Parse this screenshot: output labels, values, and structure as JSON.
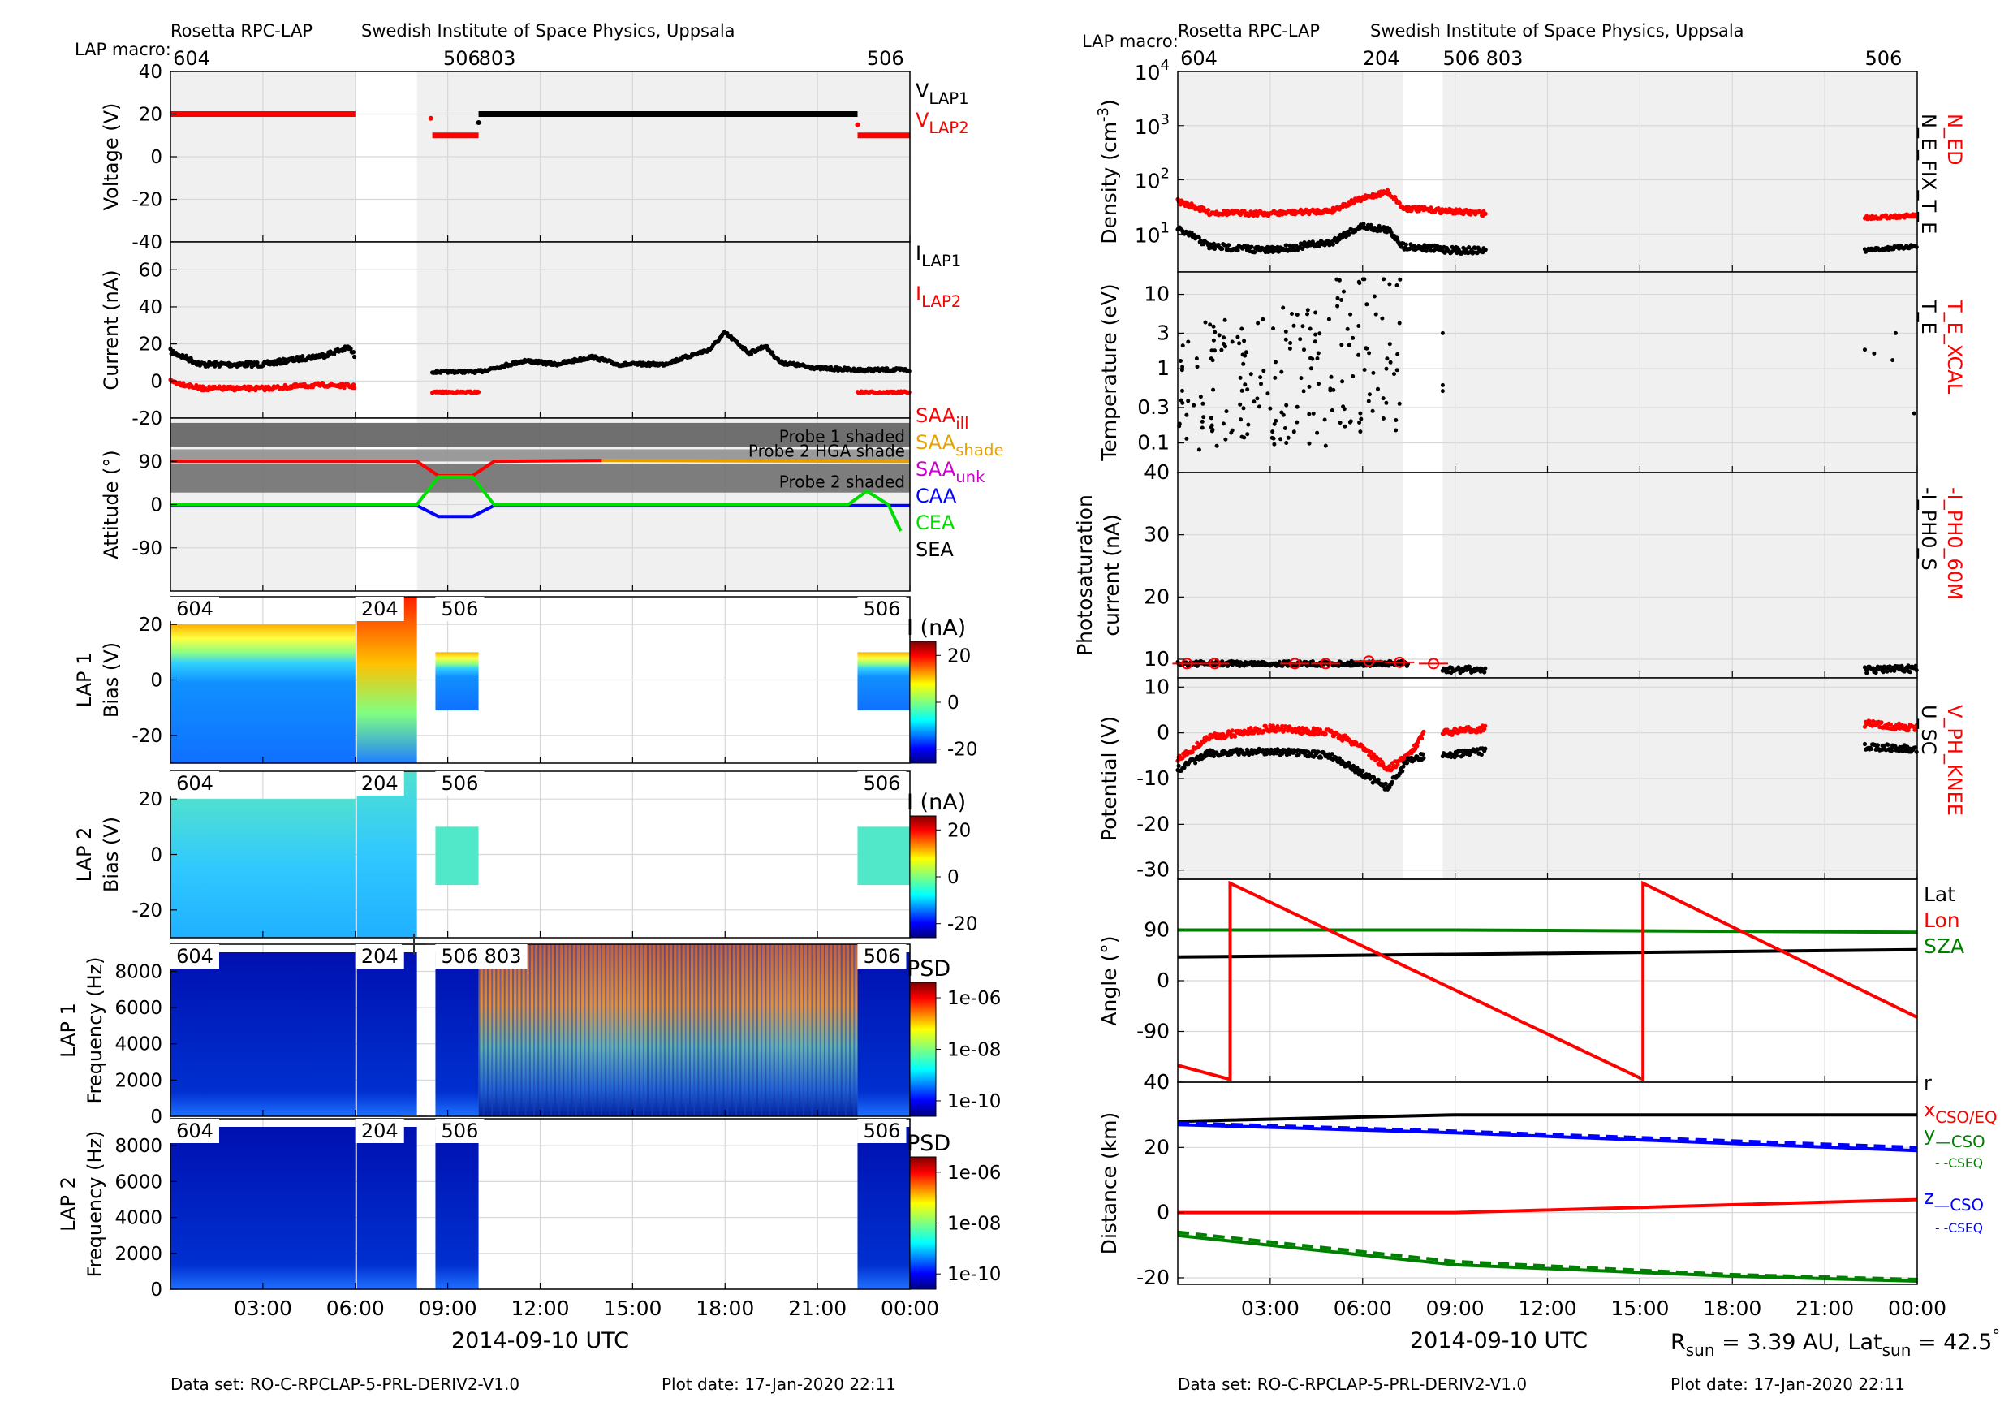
{
  "left": {
    "header": {
      "instrument": "Rosetta RPC-LAP",
      "institute": "Swedish Institute of Space Physics, Uppsala",
      "macro_label": "LAP macro:",
      "macros": [
        {
          "label": "604",
          "t": 0.0
        },
        {
          "label": "506",
          "t": 8.85
        },
        {
          "label": "803",
          "t": 10.0
        },
        {
          "label": "506",
          "t": 22.6
        }
      ]
    },
    "footer": {
      "dataset": "Data set: RO-C-RPCLAP-5-PRL-DERIV2-V1.0",
      "plotdate": "Plot date: 17-Jan-2020 22:11"
    },
    "xaxis": {
      "title": "2014-09-10 UTC",
      "ticks": [
        "03:00",
        "06:00",
        "09:00",
        "12:00",
        "15:00",
        "18:00",
        "21:00",
        "00:00"
      ],
      "tick_hours": [
        3,
        6,
        9,
        12,
        15,
        18,
        21,
        24
      ]
    },
    "voltage": {
      "ylabel": "Voltage (V)",
      "ylim": [
        -40,
        40
      ],
      "yticks": [
        "40",
        "20",
        "0",
        "-20",
        "-40"
      ],
      "ytick_vals": [
        40,
        20,
        0,
        -20,
        -40
      ],
      "legend": [
        {
          "name": "V",
          "sub": "LAP1",
          "color": "#000000"
        },
        {
          "name": "V",
          "sub": "LAP2",
          "color": "#ff0000"
        }
      ],
      "segments": [
        {
          "series": "LAP2",
          "t0": 0.0,
          "t1": 6.0,
          "v": 20
        },
        {
          "series": "LAP2",
          "t0": 8.5,
          "t1": 10.0,
          "v": 10
        },
        {
          "series": "LAP1",
          "t0": 10.0,
          "t1": 22.3,
          "v": 20
        },
        {
          "series": "LAP2",
          "t0": 22.3,
          "t1": 24.0,
          "v": 10
        }
      ]
    },
    "current": {
      "ylabel": "Current (nA)",
      "ylim": [
        -20,
        75
      ],
      "yticks": [
        "60",
        "40",
        "20",
        "0",
        "-20"
      ],
      "ytick_vals": [
        60,
        40,
        20,
        0,
        -20
      ],
      "legend": [
        {
          "name": "I",
          "sub": "LAP1",
          "color": "#000000"
        },
        {
          "name": "I",
          "sub": "LAP2",
          "color": "#ff0000"
        }
      ],
      "lap1": [
        [
          0,
          16
        ],
        [
          1,
          9
        ],
        [
          3,
          9
        ],
        [
          5,
          14
        ],
        [
          5.8,
          18
        ],
        [
          6,
          13
        ],
        [
          8.5,
          5
        ],
        [
          10,
          5
        ],
        [
          11.5,
          11
        ],
        [
          12.5,
          9
        ],
        [
          13.7,
          13
        ],
        [
          14.5,
          9
        ],
        [
          16,
          9
        ],
        [
          17.5,
          17
        ],
        [
          18,
          26
        ],
        [
          18.8,
          15
        ],
        [
          19.3,
          19
        ],
        [
          19.8,
          10
        ],
        [
          21,
          7
        ],
        [
          22.3,
          6
        ],
        [
          24,
          6
        ]
      ],
      "lap2": [
        [
          0,
          0
        ],
        [
          1,
          -4
        ],
        [
          3,
          -4
        ],
        [
          5,
          -2
        ],
        [
          6,
          -3
        ],
        [
          8.5,
          -6
        ],
        [
          10,
          -6
        ],
        [
          22.3,
          -6
        ],
        [
          24,
          -6
        ]
      ]
    },
    "attitude": {
      "ylabel": "Attitude (°)",
      "ylim": [
        -180,
        180
      ],
      "yticks": [
        "90",
        "0",
        "-90"
      ],
      "ytick_vals": [
        90,
        0,
        -90
      ],
      "bands": [
        {
          "label": "Probe 1 shaded",
          "y0": 120,
          "y1": 170
        },
        {
          "label": "Probe 2 HGA shade",
          "y0": 90,
          "y1": 115
        },
        {
          "label": "Probe 2 shaded",
          "y0": 25,
          "y1": 85
        }
      ],
      "legend": [
        {
          "name": "SAA",
          "sub": "ill",
          "color": "#ff0000"
        },
        {
          "name": "SAA",
          "sub": "shade",
          "color": "#e8a000"
        },
        {
          "name": "SAA",
          "sub": "unk",
          "color": "#cc00cc"
        },
        {
          "name": "CAA",
          "sub": "",
          "color": "#0000ff"
        },
        {
          "name": "CEA",
          "sub": "",
          "color": "#00dd00"
        },
        {
          "name": "SEA",
          "sub": "",
          "color": "#000000"
        }
      ],
      "saa_ill": [
        [
          0,
          90
        ],
        [
          8,
          90
        ],
        [
          8.7,
          60
        ],
        [
          9.8,
          60
        ],
        [
          10.5,
          90
        ],
        [
          14,
          92
        ]
      ],
      "saa_shade": [
        [
          14,
          92
        ],
        [
          24,
          90
        ]
      ],
      "caa": [
        [
          0,
          -2
        ],
        [
          8,
          -2
        ],
        [
          8.7,
          -25
        ],
        [
          9.8,
          -25
        ],
        [
          10.5,
          -2
        ],
        [
          24,
          -2
        ]
      ],
      "cea": [
        [
          0,
          0
        ],
        [
          8,
          0
        ],
        [
          8.7,
          58
        ],
        [
          9.8,
          58
        ],
        [
          10.5,
          0
        ],
        [
          22,
          0
        ],
        [
          22.6,
          28
        ],
        [
          23.3,
          0
        ],
        [
          23.7,
          -55
        ]
      ]
    },
    "lap1_bias": {
      "ylabel1": "LAP 1",
      "ylabel2": "Bias (V)",
      "ylim": [
        -30,
        30
      ],
      "yticks": [
        "20",
        "0",
        "-20"
      ],
      "ytick_vals": [
        20,
        0,
        -20
      ],
      "cbar_title": "I (nA)",
      "cbar_ticks": [
        "20",
        "0",
        "-20"
      ],
      "macros": [
        {
          "label": "604",
          "t": 0.0
        },
        {
          "label": "204",
          "t": 6.0
        },
        {
          "label": "506",
          "t": 8.6
        },
        {
          "label": "506",
          "t": 22.3
        }
      ]
    },
    "lap2_bias": {
      "ylabel1": "LAP 2",
      "ylabel2": "Bias (V)",
      "ylim": [
        -30,
        30
      ],
      "yticks": [
        "20",
        "0",
        "-20"
      ],
      "ytick_vals": [
        20,
        0,
        -20
      ],
      "cbar_title": "I (nA)",
      "cbar_ticks": [
        "20",
        "0",
        "-20"
      ],
      "macros": [
        {
          "label": "604",
          "t": 0.0
        },
        {
          "label": "204",
          "t": 6.0
        },
        {
          "label": "506",
          "t": 8.6
        },
        {
          "label": "506",
          "t": 22.3
        }
      ]
    },
    "lap1_freq": {
      "ylabel1": "LAP 1",
      "ylabel2": "Frequency (Hz)",
      "ylim": [
        0,
        9500
      ],
      "yticks": [
        "8000",
        "6000",
        "4000",
        "2000",
        "0"
      ],
      "ytick_vals": [
        8000,
        6000,
        4000,
        2000,
        0
      ],
      "cbar_title": "PSD",
      "cbar_ticks": [
        "1e-06",
        "1e-08",
        "1e-10"
      ],
      "macros": [
        {
          "label": "604",
          "t": 0.0
        },
        {
          "label": "204",
          "t": 6.0
        },
        {
          "label": "506",
          "t": 8.6
        },
        {
          "label": "803",
          "t": 10.0
        },
        {
          "label": "506",
          "t": 22.3
        }
      ]
    },
    "lap2_freq": {
      "ylabel1": "LAP 2",
      "ylabel2": "Frequency (Hz)",
      "ylim": [
        0,
        9500
      ],
      "yticks": [
        "8000",
        "6000",
        "4000",
        "2000",
        "0"
      ],
      "ytick_vals": [
        8000,
        6000,
        4000,
        2000,
        0
      ],
      "cbar_title": "PSD",
      "cbar_ticks": [
        "1e-06",
        "1e-08",
        "1e-10"
      ],
      "macros": [
        {
          "label": "604",
          "t": 0.0
        },
        {
          "label": "204",
          "t": 6.0
        },
        {
          "label": "506",
          "t": 8.6
        },
        {
          "label": "506",
          "t": 22.3
        }
      ]
    }
  },
  "right": {
    "header": {
      "instrument": "Rosetta RPC-LAP",
      "institute": "Swedish Institute of Space Physics, Uppsala",
      "macro_label": "LAP macro:",
      "macros": [
        {
          "label": "604",
          "t": 0.0
        },
        {
          "label": "204",
          "t": 6.0
        },
        {
          "label": "506",
          "t": 8.6
        },
        {
          "label": "803",
          "t": 10.0
        },
        {
          "label": "506",
          "t": 22.3
        }
      ]
    },
    "footer": {
      "dataset": "Data set: RO-C-RPCLAP-5-PRL-DERIV2-V1.0",
      "plotdate": "Plot date: 17-Jan-2020 22:11"
    },
    "xaxis": {
      "title": "2014-09-10 UTC",
      "ticks": [
        "03:00",
        "06:00",
        "09:00",
        "12:00",
        "15:00",
        "18:00",
        "21:00",
        "00:00"
      ],
      "tick_hours": [
        3,
        6,
        9,
        12,
        15,
        18,
        21,
        24
      ]
    },
    "rsun_text": "R",
    "rsun_sub": "sun",
    "rsun_value": " = 3.39 AU, Lat",
    "lat_sub": "sun",
    "lat_value": " = 42.5",
    "lat_deg": "°",
    "density": {
      "ylabel": "Density (cm",
      "ylabel_exp": "-3",
      "ylabel_end": ")",
      "ytick_exps": [
        "4",
        "3",
        "2",
        "1"
      ],
      "ytick_vals": [
        10000,
        1000,
        100,
        10
      ],
      "tick_base": "10",
      "vlabels": [
        {
          "text": "N_ED",
          "color": "#ff0000"
        },
        {
          "text": "N_E_FIX_T_E",
          "color": "#000000"
        }
      ],
      "ned": [
        [
          0,
          40
        ],
        [
          1,
          25
        ],
        [
          3,
          24
        ],
        [
          5,
          27
        ],
        [
          6,
          45
        ],
        [
          6.8,
          60
        ],
        [
          7.3,
          30
        ],
        [
          9,
          26
        ],
        [
          10,
          24
        ]
      ],
      "ned2": [
        [
          22.3,
          20
        ],
        [
          24,
          22
        ]
      ],
      "nfix": [
        [
          0,
          12
        ],
        [
          1,
          6
        ],
        [
          3,
          5
        ],
        [
          5,
          7
        ],
        [
          6,
          14
        ],
        [
          6.8,
          12
        ],
        [
          7.3,
          6
        ],
        [
          9,
          5
        ],
        [
          10,
          5
        ]
      ],
      "nfix2": [
        [
          22.3,
          5
        ],
        [
          24,
          6
        ]
      ]
    },
    "temperature": {
      "ylabel": "Temperature (eV)",
      "yticks": [
        "10",
        "3",
        "1",
        "0.3",
        "0.1"
      ],
      "ytick_vals": [
        10,
        3,
        1,
        0.3,
        0.1
      ],
      "vlabels": [
        {
          "text": "T_E_XCAL",
          "color": "#ff0000"
        },
        {
          "text": "T_E",
          "color": "#000000"
        }
      ]
    },
    "photo": {
      "ylabel1": "Photosaturation",
      "ylabel2": "current (nA)",
      "ylim": [
        7,
        40
      ],
      "yticks": [
        "40",
        "30",
        "20",
        "10"
      ],
      "ytick_vals": [
        40,
        30,
        20,
        10
      ],
      "vlabels": [
        {
          "text": "-I_PH0_60M",
          "color": "#ff0000"
        },
        {
          "text": "-I_PH0_S",
          "color": "#000000"
        }
      ],
      "red_pts": [
        [
          0.3,
          9.3
        ],
        [
          1.2,
          9.3
        ],
        [
          3.8,
          9.3
        ],
        [
          4.8,
          9.3
        ],
        [
          6.2,
          9.7
        ],
        [
          7.2,
          9.5
        ],
        [
          8.3,
          9.3
        ]
      ]
    },
    "potential": {
      "ylabel": "Potential (V)",
      "ylim": [
        -32,
        12
      ],
      "yticks": [
        "10",
        "0",
        "-10",
        "-20",
        "-30"
      ],
      "ytick_vals": [
        10,
        0,
        -10,
        -20,
        -30
      ],
      "vlabels": [
        {
          "text": "V_PH_KNEE",
          "color": "#ff0000"
        },
        {
          "text": "U_SC",
          "color": "#000000"
        }
      ],
      "vph": [
        [
          0,
          -6
        ],
        [
          1,
          -1
        ],
        [
          3,
          1
        ],
        [
          5,
          0
        ],
        [
          6,
          -3
        ],
        [
          6.8,
          -8
        ],
        [
          7.5,
          -5
        ],
        [
          8,
          0
        ]
      ],
      "vph2": [
        [
          8.6,
          0
        ],
        [
          10,
          1
        ]
      ],
      "vph3": [
        [
          22.3,
          2
        ],
        [
          24,
          1
        ]
      ],
      "usc": [
        [
          0,
          -8
        ],
        [
          1,
          -4.5
        ],
        [
          3,
          -4
        ],
        [
          5,
          -5
        ],
        [
          6,
          -9
        ],
        [
          6.8,
          -12
        ],
        [
          7.5,
          -6
        ],
        [
          8,
          -5
        ]
      ],
      "usc2": [
        [
          8.6,
          -5
        ],
        [
          10,
          -4
        ]
      ],
      "usc3": [
        [
          22.3,
          -3
        ],
        [
          24,
          -3.5
        ]
      ]
    },
    "angle": {
      "ylabel": "Angle (°)",
      "ylim": [
        -180,
        180
      ],
      "yticks": [
        "90",
        "0",
        "-90"
      ],
      "ytick_vals": [
        90,
        0,
        -90
      ],
      "legend": [
        {
          "text": "Lat",
          "color": "#000000"
        },
        {
          "text": "Lon",
          "color": "#ff0000"
        },
        {
          "text": "SZA",
          "color": "#008000"
        }
      ],
      "lat": [
        [
          0,
          42
        ],
        [
          24,
          55
        ]
      ],
      "sza": [
        [
          0,
          90
        ],
        [
          9,
          90
        ],
        [
          24,
          86
        ]
      ],
      "lon": [
        [
          0,
          -150
        ],
        [
          1.7,
          -175
        ],
        [
          1.7,
          173
        ],
        [
          15.1,
          -175
        ],
        [
          15.1,
          173
        ],
        [
          24,
          -65
        ]
      ]
    },
    "distance": {
      "ylabel": "Distance (km)",
      "ylim": [
        -22,
        40
      ],
      "yticks": [
        "40",
        "20",
        "0",
        "-20"
      ],
      "ytick_vals": [
        40,
        20,
        0,
        -20
      ],
      "legend": [
        {
          "text": "r",
          "sub": "",
          "color": "#000000"
        },
        {
          "text": "x",
          "sub": "CSO/EQ",
          "color": "#ff0000"
        },
        {
          "text": "y",
          "sub": "—CSO",
          "color": "#008000"
        },
        {
          "text": "",
          "sub": "- -CSEQ",
          "color": "#008000"
        },
        {
          "text": "z",
          "sub": "—CSO",
          "color": "#0000ff"
        },
        {
          "text": "",
          "sub": "- -CSEQ",
          "color": "#0000ff"
        }
      ],
      "r": [
        [
          0,
          28
        ],
        [
          9,
          30
        ],
        [
          24,
          30
        ]
      ],
      "x": [
        [
          0,
          0
        ],
        [
          9,
          0
        ],
        [
          24,
          4
        ]
      ],
      "y_cso": [
        [
          0,
          -7
        ],
        [
          9,
          -16
        ],
        [
          18,
          -19.5
        ],
        [
          24,
          -21
        ]
      ],
      "y_cseq": [
        [
          0,
          -6
        ],
        [
          9,
          -15
        ],
        [
          18,
          -19
        ],
        [
          24,
          -20.5
        ]
      ],
      "z_cso": [
        [
          0,
          27
        ],
        [
          9,
          24.5
        ],
        [
          24,
          19
        ]
      ],
      "z_cseq": [
        [
          0,
          27.5
        ],
        [
          9,
          25
        ],
        [
          24,
          20
        ]
      ]
    }
  }
}
